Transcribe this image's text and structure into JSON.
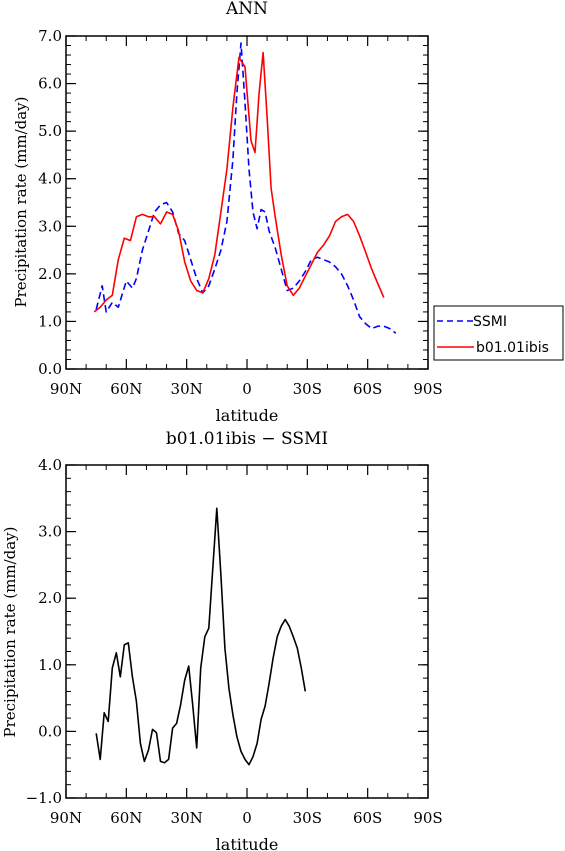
{
  "chart_data": [
    {
      "type": "line",
      "title": "ANN",
      "xlabel": "latitude",
      "ylabel": "Precipitation rate (mm/day)",
      "xlim": [
        90,
        -90
      ],
      "ylim": [
        0.0,
        7.0
      ],
      "xticks": [
        90,
        60,
        30,
        0,
        -30,
        -60,
        -90
      ],
      "xtick_labels": [
        "90N",
        "60N",
        "30N",
        "0",
        "30S",
        "60S",
        "90S"
      ],
      "yticks": [
        0.0,
        1.0,
        2.0,
        3.0,
        4.0,
        5.0,
        6.0,
        7.0
      ],
      "ytick_labels": [
        "0.0",
        "1.0",
        "2.0",
        "3.0",
        "4.0",
        "5.0",
        "6.0",
        "7.0"
      ],
      "legend_position": "right",
      "series": [
        {
          "name": "SSMI",
          "color": "#0000ff",
          "dash": "dashed",
          "points": [
            [
              75,
              1.25
            ],
            [
              72,
              1.75
            ],
            [
              70,
              1.2
            ],
            [
              67,
              1.4
            ],
            [
              64,
              1.3
            ],
            [
              60,
              1.85
            ],
            [
              57,
              1.7
            ],
            [
              55,
              1.9
            ],
            [
              52,
              2.5
            ],
            [
              49,
              2.9
            ],
            [
              46,
              3.3
            ],
            [
              43,
              3.45
            ],
            [
              40,
              3.5
            ],
            [
              37,
              3.3
            ],
            [
              34,
              2.85
            ],
            [
              31,
              2.7
            ],
            [
              28,
              2.3
            ],
            [
              25,
              1.9
            ],
            [
              22,
              1.6
            ],
            [
              19,
              1.75
            ],
            [
              16,
              2.1
            ],
            [
              13,
              2.5
            ],
            [
              10,
              3.1
            ],
            [
              7,
              4.4
            ],
            [
              5,
              5.8
            ],
            [
              3,
              6.85
            ],
            [
              1,
              5.6
            ],
            [
              -1,
              4.2
            ],
            [
              -3,
              3.3
            ],
            [
              -5,
              2.95
            ],
            [
              -7,
              3.35
            ],
            [
              -9,
              3.3
            ],
            [
              -11,
              2.9
            ],
            [
              -14,
              2.55
            ],
            [
              -17,
              2.1
            ],
            [
              -20,
              1.65
            ],
            [
              -23,
              1.7
            ],
            [
              -26,
              1.85
            ],
            [
              -29,
              2.05
            ],
            [
              -32,
              2.3
            ],
            [
              -35,
              2.35
            ],
            [
              -38,
              2.3
            ],
            [
              -41,
              2.25
            ],
            [
              -44,
              2.15
            ],
            [
              -47,
              2.0
            ],
            [
              -50,
              1.75
            ],
            [
              -53,
              1.45
            ],
            [
              -56,
              1.1
            ],
            [
              -59,
              0.95
            ],
            [
              -62,
              0.85
            ],
            [
              -65,
              0.9
            ],
            [
              -68,
              0.9
            ],
            [
              -71,
              0.85
            ],
            [
              -74,
              0.75
            ]
          ]
        },
        {
          "name": "b01.01ibis",
          "color": "#ff0000",
          "dash": "solid",
          "points": [
            [
              76,
              1.2
            ],
            [
              73,
              1.3
            ],
            [
              70,
              1.45
            ],
            [
              67,
              1.55
            ],
            [
              64,
              2.3
            ],
            [
              61,
              2.75
            ],
            [
              58,
              2.7
            ],
            [
              55,
              3.2
            ],
            [
              52,
              3.25
            ],
            [
              49,
              3.2
            ],
            [
              46,
              3.2
            ],
            [
              43,
              3.05
            ],
            [
              40,
              3.3
            ],
            [
              37,
              3.25
            ],
            [
              34,
              2.9
            ],
            [
              31,
              2.25
            ],
            [
              28,
              1.85
            ],
            [
              25,
              1.65
            ],
            [
              22,
              1.6
            ],
            [
              19,
              1.9
            ],
            [
              16,
              2.4
            ],
            [
              13,
              3.3
            ],
            [
              10,
              4.2
            ],
            [
              7,
              5.5
            ],
            [
              4,
              6.55
            ],
            [
              1,
              6.35
            ],
            [
              -2,
              4.8
            ],
            [
              -4,
              4.55
            ],
            [
              -6,
              5.8
            ],
            [
              -8,
              6.65
            ],
            [
              -10,
              5.3
            ],
            [
              -12,
              3.8
            ],
            [
              -14,
              3.2
            ],
            [
              -17,
              2.4
            ],
            [
              -20,
              1.75
            ],
            [
              -23,
              1.55
            ],
            [
              -26,
              1.7
            ],
            [
              -29,
              1.95
            ],
            [
              -32,
              2.2
            ],
            [
              -35,
              2.45
            ],
            [
              -38,
              2.6
            ],
            [
              -41,
              2.8
            ],
            [
              -44,
              3.1
            ],
            [
              -47,
              3.2
            ],
            [
              -50,
              3.25
            ],
            [
              -53,
              3.1
            ],
            [
              -56,
              2.8
            ],
            [
              -59,
              2.45
            ],
            [
              -62,
              2.1
            ],
            [
              -65,
              1.8
            ],
            [
              -68,
              1.5
            ]
          ]
        }
      ]
    },
    {
      "type": "line",
      "title": "b01.01ibis − SSMI",
      "xlabel": "latitude",
      "ylabel": "Precipitation rate (mm/day)",
      "xlim": [
        90,
        -90
      ],
      "ylim": [
        -1.0,
        4.0
      ],
      "xticks": [
        90,
        60,
        30,
        0,
        -30,
        -60,
        -90
      ],
      "xtick_labels": [
        "90N",
        "60N",
        "30N",
        "0",
        "30S",
        "60S",
        "90S"
      ],
      "yticks": [
        -1.0,
        0.0,
        1.0,
        2.0,
        3.0,
        4.0
      ],
      "ytick_labels": [
        "−1.0",
        "0.0",
        "1.0",
        "2.0",
        "3.0",
        "4.0"
      ],
      "series": [
        {
          "color": "#000000",
          "dash": "solid",
          "points": [
            [
              75,
              -0.03
            ],
            [
              73,
              -0.42
            ],
            [
              71,
              0.28
            ],
            [
              69,
              0.15
            ],
            [
              67,
              0.95
            ],
            [
              65,
              1.18
            ],
            [
              63,
              0.82
            ],
            [
              61,
              1.3
            ],
            [
              59,
              1.33
            ],
            [
              57,
              0.82
            ],
            [
              55,
              0.45
            ],
            [
              53,
              -0.18
            ],
            [
              51,
              -0.45
            ],
            [
              49,
              -0.28
            ],
            [
              47,
              0.03
            ],
            [
              45,
              -0.02
            ],
            [
              43,
              -0.45
            ],
            [
              41,
              -0.47
            ],
            [
              39,
              -0.42
            ],
            [
              37,
              0.05
            ],
            [
              35,
              0.12
            ],
            [
              33,
              0.4
            ],
            [
              31,
              0.77
            ],
            [
              29,
              0.98
            ],
            [
              27,
              0.4
            ],
            [
              25,
              -0.25
            ],
            [
              23,
              0.95
            ],
            [
              21,
              1.42
            ],
            [
              19,
              1.55
            ],
            [
              17,
              2.45
            ],
            [
              15,
              3.35
            ],
            [
              13,
              2.35
            ],
            [
              11,
              1.25
            ],
            [
              9,
              0.65
            ],
            [
              7,
              0.25
            ],
            [
              5,
              -0.08
            ],
            [
              3,
              -0.3
            ],
            [
              1,
              -0.42
            ],
            [
              -1,
              -0.5
            ],
            [
              -3,
              -0.38
            ],
            [
              -5,
              -0.18
            ],
            [
              -7,
              0.18
            ],
            [
              -9,
              0.38
            ],
            [
              -11,
              0.72
            ],
            [
              -13,
              1.1
            ],
            [
              -15,
              1.42
            ],
            [
              -17,
              1.58
            ],
            [
              -19,
              1.68
            ],
            [
              -21,
              1.58
            ],
            [
              -23,
              1.42
            ],
            [
              -25,
              1.25
            ],
            [
              -27,
              0.95
            ],
            [
              -29,
              0.6
            ]
          ]
        }
      ]
    }
  ]
}
